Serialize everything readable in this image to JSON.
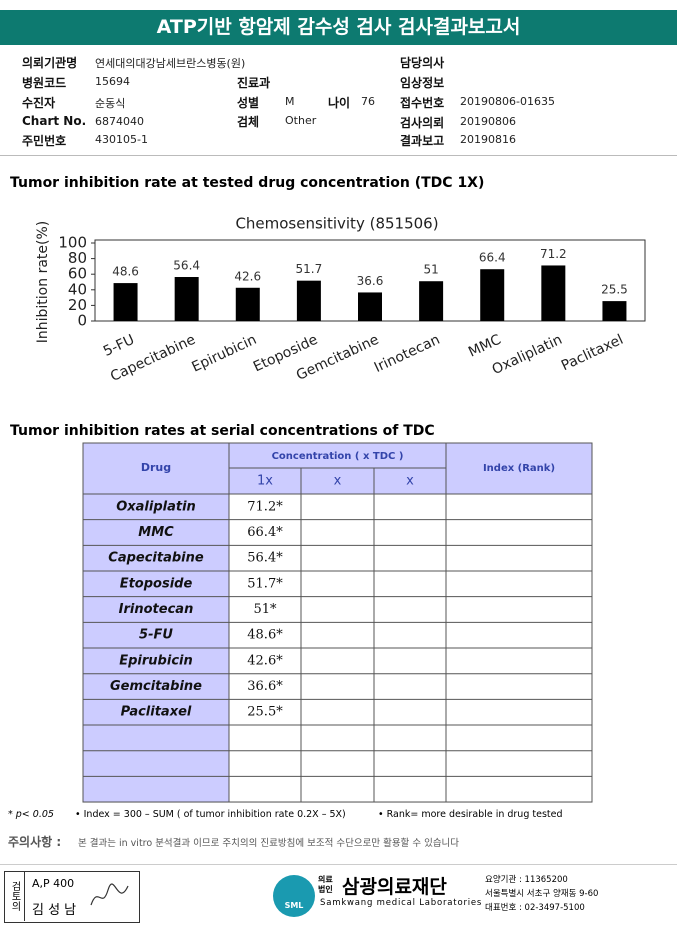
{
  "header": {
    "title": "ATP기반 항암제 감수성 검사 검사결과보고서"
  },
  "patient_info": [
    {
      "label": "의뢰기관명",
      "value": "연세대의대강남세브란스병동(원)"
    },
    {
      "label": "담당의사"
    },
    {
      "label": "병원코드",
      "value": "15694"
    },
    {
      "label": "진료과"
    },
    {
      "label": "임상정보"
    },
    {
      "label": "수진자",
      "value": "순동식"
    },
    {
      "label": "성별",
      "value": "M"
    },
    {
      "label": "나이",
      "value": "76"
    },
    {
      "label": "접수번호",
      "value": "20190806-01635"
    },
    {
      "label": "Chart No.",
      "value": "6874040"
    },
    {
      "label": "검체",
      "value": "Other"
    },
    {
      "label": "검사의뢰",
      "value": "20190806"
    },
    {
      "label": "주민번호",
      "value": "430105-1"
    },
    {
      "label": "결과보고",
      "value": "20190816"
    }
  ],
  "section1_title": "Tumor inhibition rate at tested drug concentration (TDC 1X)",
  "chart_data": {
    "type": "bar",
    "title": "Chemosensitivity (851506)",
    "y_label": "Inhibition rate(%)",
    "categories": [
      "5-FU",
      "Capecitabine",
      "Epirubicin",
      "Etoposide",
      "Gemcitabine",
      "Irinotecan",
      "MMC",
      "Oxaliplatin",
      "Paclitaxel"
    ],
    "values": [
      48.6,
      56.4,
      42.6,
      51.7,
      36.6,
      51,
      66.4,
      71.2,
      25.5
    ],
    "color": "#000000",
    "ylim": [
      0,
      100
    ],
    "yticks": [
      0,
      20,
      40,
      60,
      80,
      100
    ]
  },
  "section2_title": "Tumor inhibition rates at serial concentrations of TDC",
  "table": {
    "header": {
      "drug": "Drug",
      "concentration": "Concentration ( x TDC )",
      "sub": [
        "1x",
        "x",
        "x"
      ],
      "index": "Index (Rank)"
    },
    "rows": [
      [
        "Oxaliplatin",
        "71.2*"
      ],
      [
        "MMC",
        "66.4*"
      ],
      [
        "Capecitabine",
        "56.4*"
      ],
      [
        "Etoposide",
        "51.7*"
      ],
      [
        "Irinotecan",
        "51*"
      ],
      [
        "5-FU",
        "48.6*"
      ],
      [
        "Epirubicin",
        "42.6*"
      ],
      [
        "Gemcitabine",
        "36.6*"
      ],
      [
        "Paclitaxel",
        "25.5*"
      ]
    ]
  },
  "footnotes": [
    "* p< 0.05",
    "• Index = 300 – SUM ( of tumor inhibition rate 0.2X – 5X)",
    "• Rank= more desirable in drug tested"
  ],
  "caution": {
    "label": "주의사항 :",
    "text": "본 결과는 in vitro 분석결과 이므로 주치의의 진료방침에 보조적 수단으로만 활용할 수 있습니다"
  },
  "footer": {
    "review_label": "검토의",
    "reviewer_code": "A,P 400",
    "reviewer_name": "김 성 남",
    "logo_mark": "SML",
    "org_small": "의료법인",
    "org_name": "삼광의료재단",
    "org_english": "Samkwang medical Laboratories",
    "contact": [
      "요양기관 : 11365200",
      "서울특별시 서초구 양재동 9-60",
      "대표번호 : 02-3497-5100"
    ]
  }
}
